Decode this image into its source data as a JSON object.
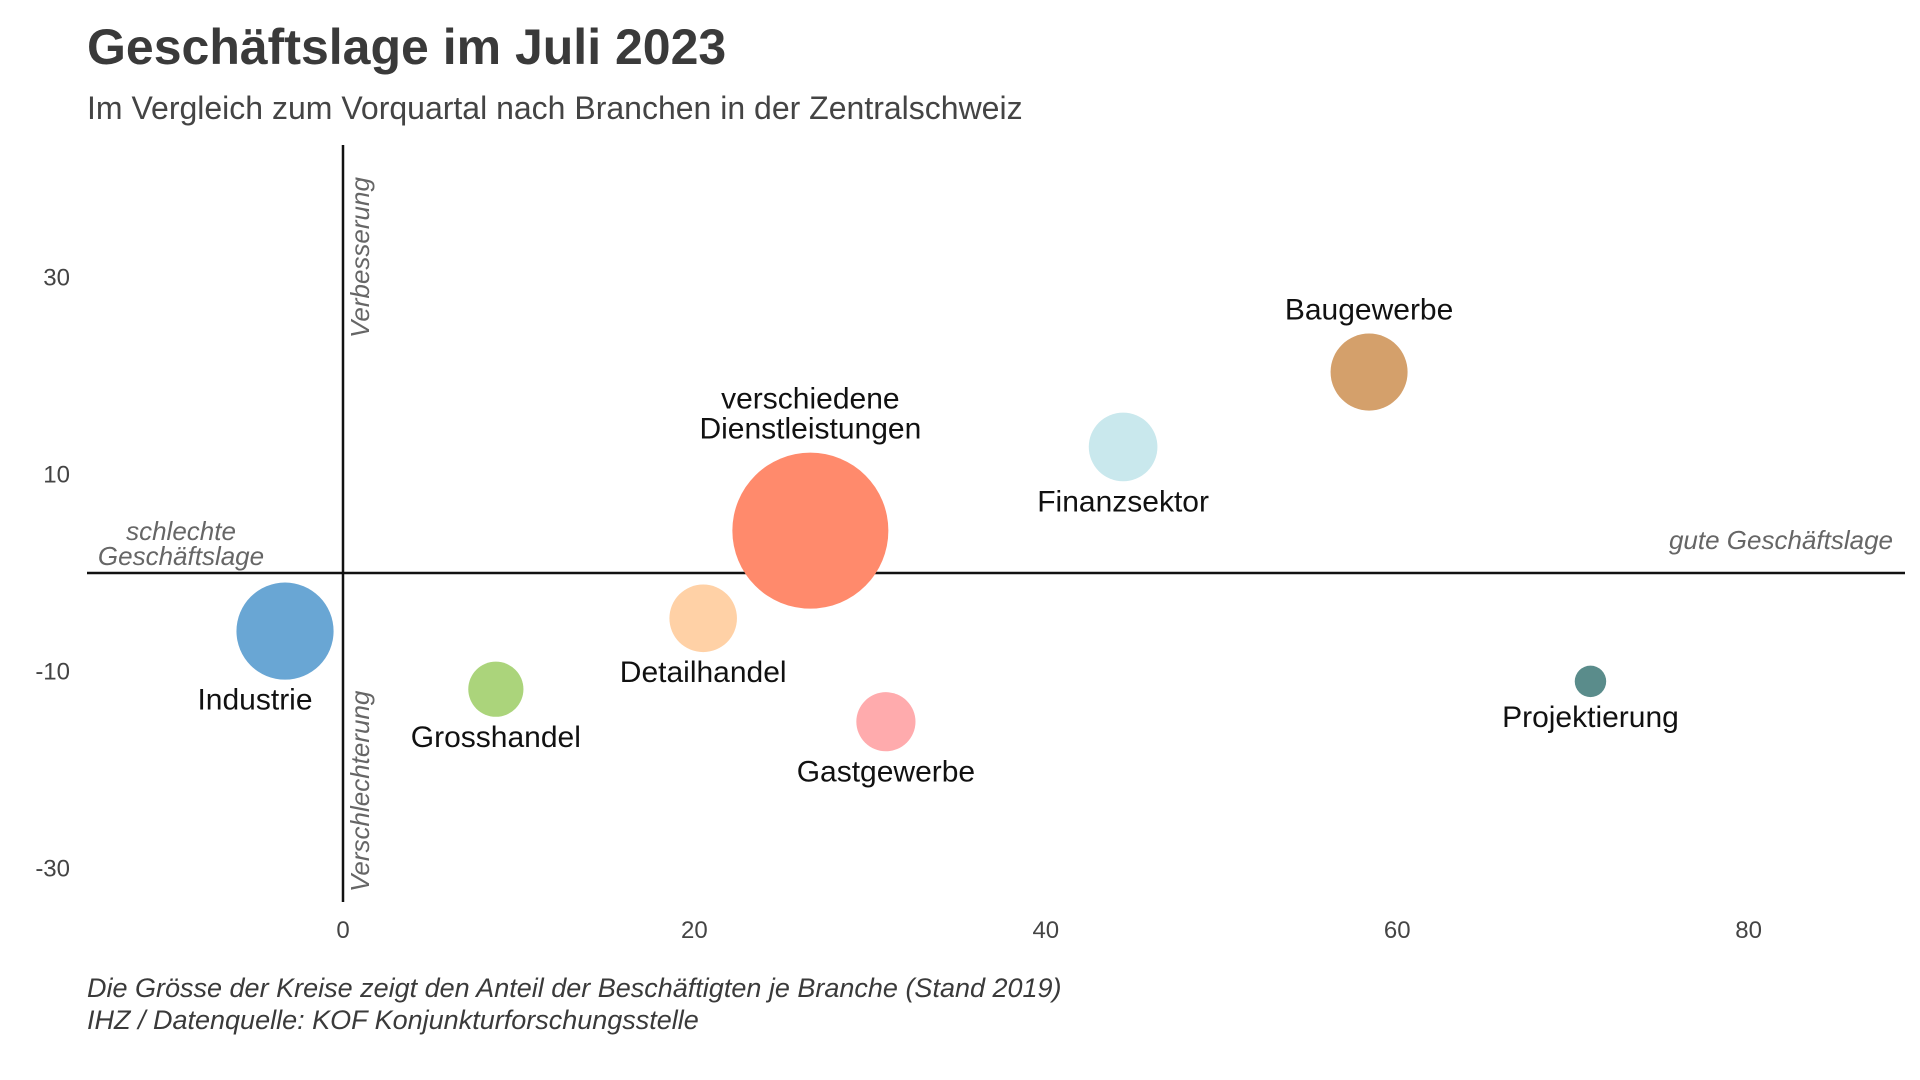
{
  "header": {
    "title": "Geschäftslage im Juli 2023",
    "subtitle": "Im Vergleich zum Vorquartal nach Branchen in der Zentralschweiz"
  },
  "footer": {
    "line1": "Die Grösse der Kreise zeigt den Anteil der Beschäftigten je Branche (Stand 2019)",
    "line2": "IHZ / Datenquelle: KOF Konjunkturforschungsstelle"
  },
  "chart_data": {
    "type": "scatter",
    "title": "Geschäftslage im Juli 2023",
    "subtitle": "Im Vergleich zum Vorquartal nach Branchen in der Zentralschweiz",
    "xlabel": "",
    "ylabel": "",
    "xlim": [
      -14.5,
      89
    ],
    "ylim": [
      -34,
      43
    ],
    "x_ticks": [
      0,
      20,
      40,
      60,
      80
    ],
    "y_ticks": [
      30,
      10,
      -10,
      -30
    ],
    "grid": false,
    "quadrant_labels": {
      "top": "Verbesserung",
      "bottom": "Verschlechterung",
      "left": [
        "schlechte",
        "Geschäftslage"
      ],
      "right": "gute Geschäftslage"
    },
    "points": [
      {
        "name": "Industrie",
        "lines": [
          "Industrie"
        ],
        "x": -3.3,
        "y": -5.9,
        "size": 6.2,
        "color": "#69a6d4",
        "label_pos": "below-left"
      },
      {
        "name": "Grosshandel",
        "lines": [
          "Grosshandel"
        ],
        "x": 8.7,
        "y": -11.8,
        "size": 2.0,
        "color": "#abd47b",
        "label_pos": "below"
      },
      {
        "name": "Detailhandel",
        "lines": [
          "Detailhandel"
        ],
        "x": 20.5,
        "y": -4.6,
        "size": 3.0,
        "color": "#ffd1a6",
        "label_pos": "below"
      },
      {
        "name": "verschiedene Dienstleistungen",
        "lines": [
          "verschiedene",
          "Dienstleistungen"
        ],
        "x": 26.6,
        "y": 4.3,
        "size": 16.0,
        "color": "#ff8a6c",
        "label_pos": "above"
      },
      {
        "name": "Gastgewerbe",
        "lines": [
          "Gastgewerbe"
        ],
        "x": 30.9,
        "y": -15.1,
        "size": 2.3,
        "color": "#ffabad",
        "label_pos": "below"
      },
      {
        "name": "Finanzsektor",
        "lines": [
          "Finanzsektor"
        ],
        "x": 44.4,
        "y": 12.8,
        "size": 3.1,
        "color": "#c9e8ed",
        "label_pos": "below"
      },
      {
        "name": "Baugewerbe",
        "lines": [
          "Baugewerbe"
        ],
        "x": 58.4,
        "y": 20.4,
        "size": 3.9,
        "color": "#d4a06b",
        "label_pos": "above"
      },
      {
        "name": "Projektierung",
        "lines": [
          "Projektierung"
        ],
        "x": 71.0,
        "y": -11.0,
        "size": 0.65,
        "color": "#5a8c8b",
        "label_pos": "below"
      }
    ]
  }
}
